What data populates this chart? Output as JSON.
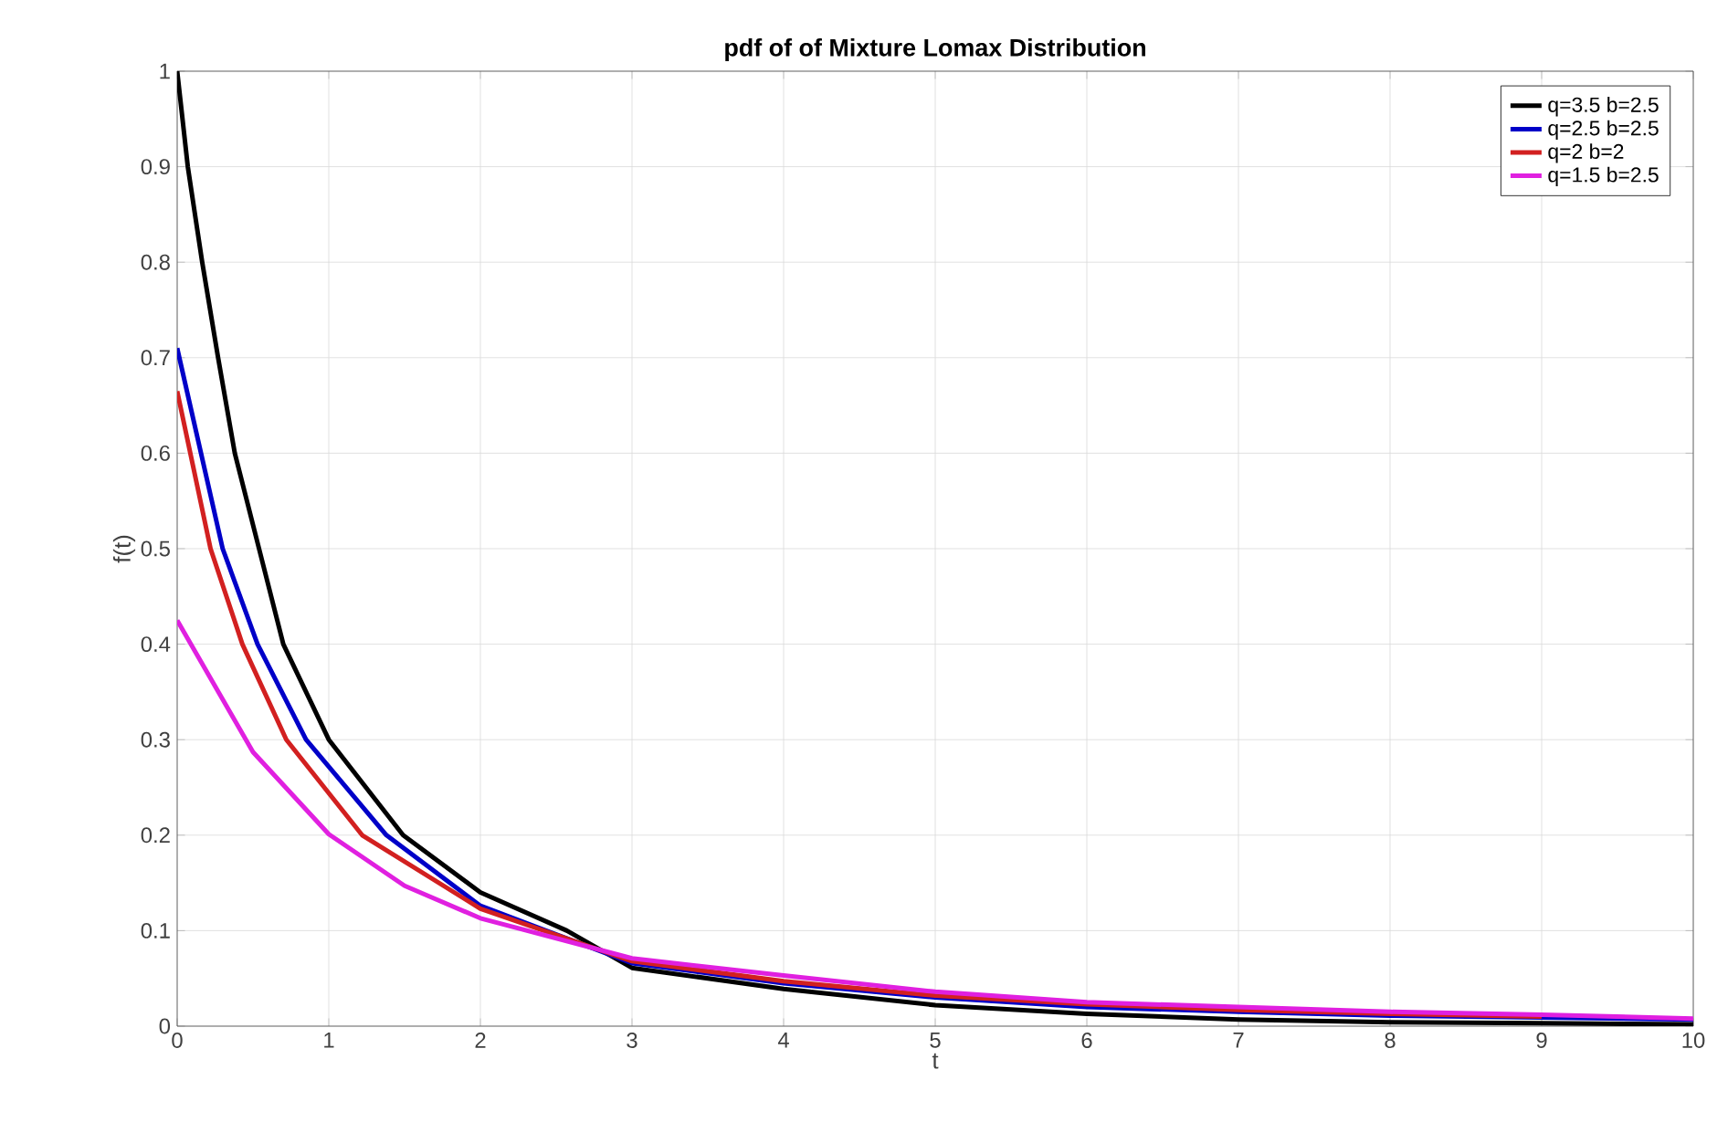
{
  "chart_data": {
    "type": "line",
    "title": "pdf of of Mixture Lomax Distribution",
    "xlabel": "t",
    "ylabel": "f(t)",
    "xlim": [
      0,
      10
    ],
    "ylim": [
      0,
      1
    ],
    "xticks": [
      0,
      1,
      2,
      3,
      4,
      5,
      6,
      7,
      8,
      9,
      10
    ],
    "yticks": [
      0,
      0.1,
      0.2,
      0.3,
      0.4,
      0.5,
      0.6,
      0.7,
      0.8,
      0.9,
      1
    ],
    "grid": true,
    "legend": "top right",
    "marker": "none",
    "line_style": "solid",
    "series": [
      {
        "name": "q=3.5 b=2.5",
        "color": "#000000",
        "x": [
          0,
          0.07,
          0.165,
          0.27,
          0.38,
          0.54,
          0.7,
          1.0,
          1.49,
          2.0,
          2.57,
          3,
          4,
          5,
          6,
          7,
          8,
          9,
          10
        ],
        "values": [
          1,
          0.9,
          0.8,
          0.7,
          0.6,
          0.5,
          0.4,
          0.3,
          0.2,
          0.14,
          0.1,
          0.061,
          0.039,
          0.022,
          0.013,
          0.007,
          0.004,
          0.003,
          0.002
        ]
      },
      {
        "name": "q=2.5 b=2.5",
        "color": "#0000c8",
        "x": [
          0,
          0.3,
          0.53,
          0.85,
          1.38,
          2,
          3,
          4,
          5,
          6,
          7,
          8,
          9,
          10
        ],
        "values": [
          0.71,
          0.5,
          0.4,
          0.3,
          0.2,
          0.126,
          0.066,
          0.045,
          0.03,
          0.02,
          0.015,
          0.011,
          0.009,
          0.007
        ]
      },
      {
        "name": "q=2 b=2",
        "color": "#d22020",
        "x": [
          0,
          0.22,
          0.43,
          0.72,
          1.22,
          2,
          3,
          4,
          5,
          6,
          7,
          8,
          9
        ],
        "values": [
          0.665,
          0.5,
          0.4,
          0.3,
          0.2,
          0.123,
          0.068,
          0.047,
          0.032,
          0.023,
          0.017,
          0.013,
          0.01
        ]
      },
      {
        "name": "q=1.5 b=2.5",
        "color": "#e020e0",
        "x": [
          0,
          0.5,
          1,
          1.5,
          2,
          2.5,
          3,
          4,
          5,
          6,
          7,
          8,
          9,
          10
        ],
        "values": [
          0.425,
          0.287,
          0.201,
          0.147,
          0.113,
          0.092,
          0.071,
          0.053,
          0.036,
          0.025,
          0.02,
          0.015,
          0.012,
          0.008
        ]
      }
    ]
  }
}
